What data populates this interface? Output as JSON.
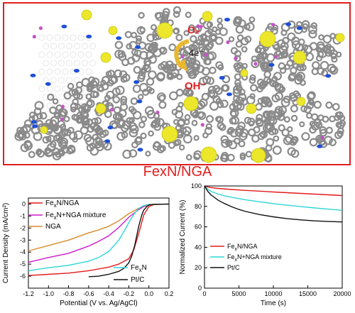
{
  "illustration": {
    "o2_label": "O₂",
    "electron_label": "4e⁻",
    "oh_label": "OH⁻",
    "colors": {
      "frame": "#e02020",
      "carbon": "#8a8a8a",
      "iron": "#ece72a",
      "nitrogen": "#1f4fd8",
      "oxygen": "#c455c4",
      "labels": "#e02020"
    }
  },
  "figure_title": "FexN/NGA",
  "chart_data": [
    {
      "type": "line",
      "xlabel": "Potential (V vs. Ag/AgCl)",
      "ylabel": "Current Density  (mA/cm²)",
      "xlim": [
        -1.2,
        0.2
      ],
      "ylim": [
        -7,
        0.5
      ],
      "xticks": [
        "-1.2",
        "-1.0",
        "-0.8",
        "-0.6",
        "-0.4",
        "-0.2",
        "0.0",
        "0.2"
      ],
      "yticks": [
        "0",
        "-1",
        "-2",
        "-3",
        "-4",
        "-5",
        "-6"
      ],
      "grid": false,
      "series": [
        {
          "name": "FexN/NGA",
          "label_main": "Fe",
          "label_sub": "x",
          "label_rest": "N/NGA",
          "color": "#e41a1c",
          "x": [
            -1.2,
            -1.0,
            -0.8,
            -0.6,
            -0.4,
            -0.3,
            -0.2,
            -0.15,
            -0.1,
            -0.05,
            0.0,
            0.05,
            0.1,
            0.2
          ],
          "y": [
            -5.95,
            -5.85,
            -5.75,
            -5.55,
            -5.25,
            -5.0,
            -4.55,
            -3.8,
            -2.4,
            -0.9,
            -0.2,
            -0.05,
            -0.02,
            -0.01
          ]
        },
        {
          "name": "FexN+NGA mixture",
          "label_main": "Fe",
          "label_sub": "x",
          "label_rest": "N+NGA mixture",
          "color": "#cc1ccc",
          "x": [
            -1.2,
            -1.0,
            -0.8,
            -0.6,
            -0.5,
            -0.4,
            -0.3,
            -0.2,
            -0.1,
            -0.05,
            0.0,
            0.05,
            0.2
          ],
          "y": [
            -4.85,
            -4.45,
            -4.1,
            -3.5,
            -3.1,
            -2.65,
            -1.95,
            -1.1,
            -0.45,
            -0.2,
            -0.08,
            -0.03,
            -0.01
          ]
        },
        {
          "name": "NGA",
          "label_main": "NGA",
          "label_sub": "",
          "label_rest": "",
          "color": "#d98a2a",
          "x": [
            -1.2,
            -1.0,
            -0.8,
            -0.6,
            -0.5,
            -0.4,
            -0.3,
            -0.2,
            -0.1,
            -0.05,
            0.0,
            0.2
          ],
          "y": [
            -3.9,
            -3.45,
            -3.0,
            -2.4,
            -2.15,
            -1.85,
            -1.4,
            -0.8,
            -0.35,
            -0.15,
            -0.06,
            -0.01
          ]
        },
        {
          "name": "FexN",
          "label_main": "Fe",
          "label_sub": "x",
          "label_rest": "N",
          "color": "#2fd6d6",
          "x": [
            -1.2,
            -1.0,
            -0.8,
            -0.6,
            -0.5,
            -0.4,
            -0.3,
            -0.25,
            -0.2,
            -0.15,
            -0.1,
            -0.05,
            0.0,
            0.2
          ],
          "y": [
            -5.55,
            -5.3,
            -5.1,
            -4.75,
            -4.45,
            -3.95,
            -3.0,
            -2.3,
            -1.55,
            -0.85,
            -0.35,
            -0.12,
            -0.04,
            -0.01
          ]
        },
        {
          "name": "Pt/C",
          "label_main": "Pt/C",
          "label_sub": "",
          "label_rest": "",
          "color": "#111111",
          "x": [
            -0.6,
            -0.5,
            -0.4,
            -0.3,
            -0.25,
            -0.2,
            -0.17,
            -0.14,
            -0.12,
            -0.1,
            -0.07,
            -0.05,
            -0.02,
            0.0,
            0.05,
            0.2
          ],
          "y": [
            -6.05,
            -6.0,
            -5.85,
            -5.6,
            -5.35,
            -4.9,
            -4.3,
            -3.4,
            -2.6,
            -1.8,
            -0.9,
            -0.5,
            -0.2,
            -0.08,
            -0.02,
            -0.01
          ]
        }
      ]
    },
    {
      "type": "line",
      "xlabel": "Time (s)",
      "ylabel": "Normalized Current (%)",
      "xlim": [
        0,
        20000
      ],
      "ylim": [
        0,
        100
      ],
      "xticks": [
        "0",
        "5000",
        "10000",
        "15000",
        "20000"
      ],
      "yticks": [
        "0",
        "20",
        "40",
        "60",
        "80",
        "100"
      ],
      "grid": false,
      "series": [
        {
          "name": "FexN/NGA",
          "label_main": "Fe",
          "label_sub": "x",
          "label_rest": "N/NGA",
          "color": "#e41a1c",
          "x": [
            0,
            500,
            1000,
            2000,
            4000,
            6000,
            8000,
            10000,
            12000,
            14000,
            16000,
            18000,
            20000
          ],
          "y": [
            100,
            99,
            98.4,
            97.6,
            96.5,
            95.6,
            94.9,
            94.1,
            93.4,
            92.7,
            92.0,
            91.3,
            90.6
          ]
        },
        {
          "name": "FexN+NGA mixture",
          "label_main": "Fe",
          "label_sub": "x",
          "label_rest": "N+NGA mixture",
          "color": "#2fd6d6",
          "x": [
            0,
            500,
            1000,
            2000,
            3000,
            4000,
            6000,
            8000,
            10000,
            12000,
            14000,
            16000,
            18000,
            20000
          ],
          "y": [
            100,
            96.5,
            94.5,
            92.0,
            90.2,
            88.8,
            86.4,
            84.5,
            82.7,
            81.2,
            79.8,
            78.5,
            77.3,
            76.2
          ]
        },
        {
          "name": "Pt/C",
          "label_main": "Pt/C",
          "label_sub": "",
          "label_rest": "",
          "color": "#111111",
          "x": [
            0,
            500,
            1000,
            2000,
            3000,
            4000,
            5000,
            6000,
            8000,
            10000,
            12000,
            14000,
            16000,
            18000,
            20000
          ],
          "y": [
            100,
            94.5,
            91.0,
            86.0,
            82.5,
            79.5,
            77.0,
            75.0,
            72.0,
            69.8,
            68.0,
            66.8,
            65.8,
            65.2,
            64.8
          ]
        }
      ]
    }
  ]
}
